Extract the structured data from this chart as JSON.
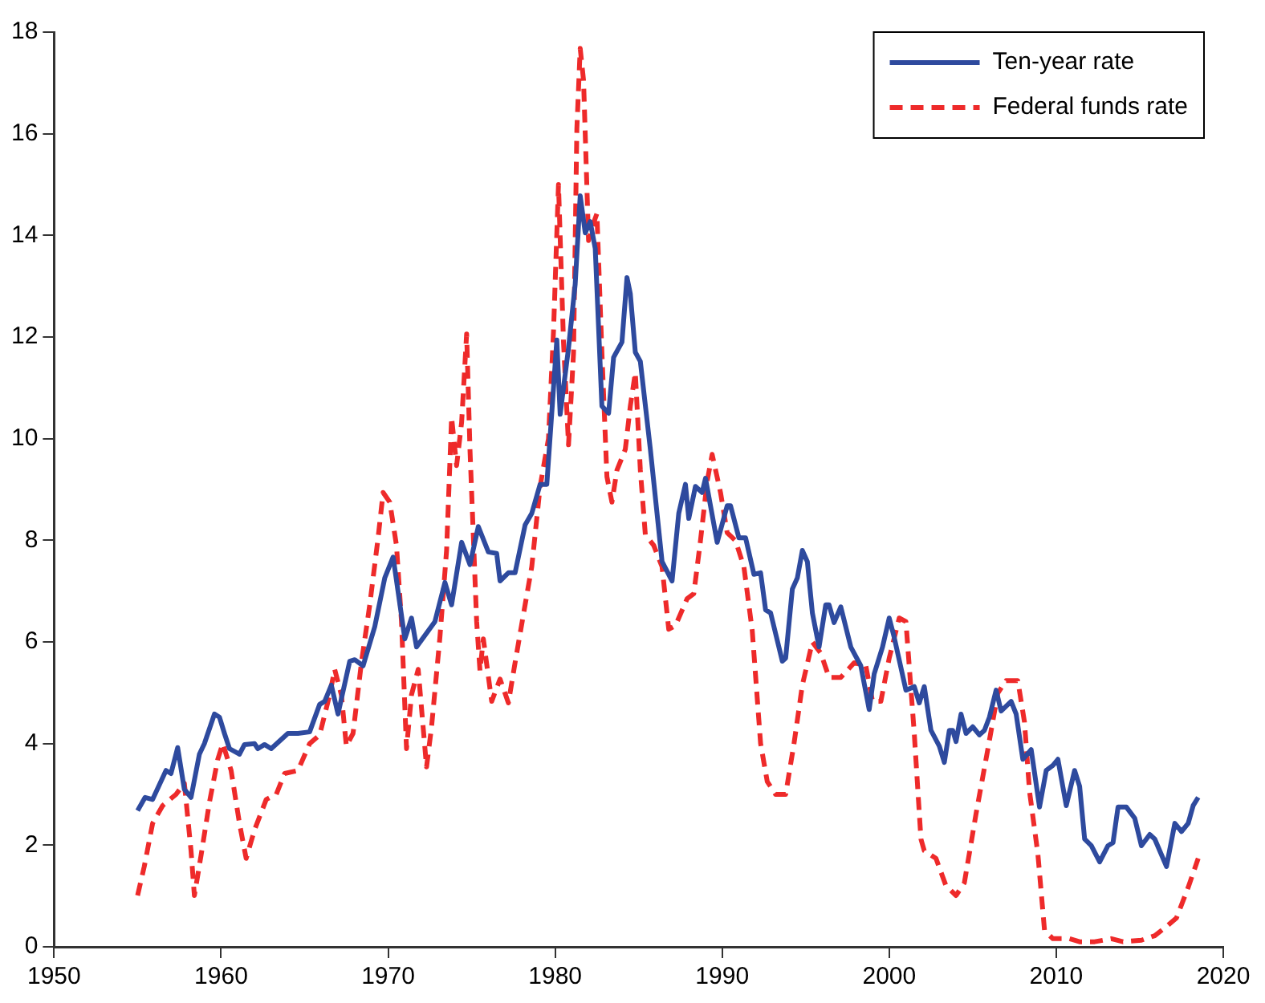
{
  "chart_data": {
    "type": "line",
    "xlim": [
      1950,
      2020
    ],
    "xticks": [
      1950,
      1960,
      1970,
      1980,
      1990,
      2000,
      2010,
      2020
    ],
    "ylim": [
      0,
      18
    ],
    "yticks": [
      0,
      2,
      4,
      6,
      8,
      10,
      12,
      14,
      16,
      18
    ],
    "grid": false,
    "legend": "top right",
    "marker": "none",
    "series": [
      {
        "name": "Ten-year rate",
        "color": "#2e4a9e",
        "line_style": "solid",
        "x": [
          1955.0,
          1955.45,
          1955.9,
          1956.7,
          1957.0,
          1957.4,
          1957.8,
          1958.2,
          1958.7,
          1959.0,
          1959.6,
          1959.9,
          1960.2,
          1960.5,
          1961.1,
          1961.4,
          1962.0,
          1962.2,
          1962.6,
          1963.0,
          1964.0,
          1964.6,
          1965.3,
          1965.9,
          1966.2,
          1966.6,
          1967.0,
          1967.7,
          1968.0,
          1968.5,
          1969.2,
          1969.8,
          1970.3,
          1971.0,
          1971.4,
          1971.7,
          1972.8,
          1973.4,
          1973.8,
          1974.4,
          1974.9,
          1975.4,
          1976.0,
          1976.5,
          1976.7,
          1977.2,
          1977.6,
          1978.2,
          1978.6,
          1979.1,
          1979.5,
          1980.1,
          1980.3,
          1980.8,
          1981.2,
          1981.5,
          1981.8,
          1982.1,
          1982.4,
          1982.8,
          1983.2,
          1983.5,
          1984.0,
          1984.3,
          1984.5,
          1984.8,
          1985.1,
          1985.7,
          1986.4,
          1987.0,
          1987.4,
          1987.8,
          1988.0,
          1988.4,
          1988.8,
          1989.0,
          1989.3,
          1989.7,
          1990.3,
          1990.5,
          1991.0,
          1991.4,
          1991.9,
          1992.3,
          1992.6,
          1992.9,
          1993.6,
          1993.8,
          1994.2,
          1994.5,
          1994.8,
          1995.1,
          1995.4,
          1995.8,
          1996.2,
          1996.4,
          1996.7,
          1997.1,
          1997.7,
          1998.3,
          1998.8,
          1999.1,
          1999.6,
          2000.0,
          2000.3,
          2001.0,
          2001.5,
          2001.8,
          2002.1,
          2002.5,
          2003.0,
          2003.3,
          2003.6,
          2003.8,
          2004.0,
          2004.3,
          2004.6,
          2005.0,
          2005.4,
          2005.7,
          2006.0,
          2006.4,
          2006.7,
          2007.3,
          2007.6,
          2008.0,
          2008.5,
          2009.0,
          2009.4,
          2009.8,
          2010.1,
          2010.6,
          2011.1,
          2011.4,
          2011.7,
          2012.1,
          2012.6,
          2013.1,
          2013.4,
          2013.7,
          2014.2,
          2014.7,
          2015.1,
          2015.6,
          2015.9,
          2016.6,
          2017.1,
          2017.5,
          2017.9,
          2018.2,
          2018.5
        ],
        "values": [
          2.68,
          2.94,
          2.9,
          3.47,
          3.41,
          3.92,
          3.1,
          2.94,
          3.79,
          4.0,
          4.58,
          4.52,
          4.2,
          3.9,
          3.79,
          3.98,
          4.0,
          3.9,
          3.98,
          3.9,
          4.2,
          4.2,
          4.23,
          4.77,
          4.83,
          5.15,
          4.58,
          5.62,
          5.65,
          5.53,
          6.3,
          7.26,
          7.67,
          6.06,
          6.47,
          5.9,
          6.4,
          7.17,
          6.73,
          7.96,
          7.52,
          8.27,
          7.77,
          7.74,
          7.2,
          7.36,
          7.36,
          8.3,
          8.53,
          9.1,
          9.1,
          11.94,
          10.48,
          11.78,
          13.04,
          14.78,
          14.05,
          14.27,
          13.74,
          10.64,
          10.5,
          11.6,
          11.9,
          13.17,
          12.85,
          11.7,
          11.52,
          9.79,
          7.58,
          7.2,
          8.53,
          9.1,
          8.43,
          9.06,
          8.94,
          9.22,
          8.68,
          7.96,
          8.68,
          8.68,
          8.05,
          8.05,
          7.33,
          7.36,
          6.63,
          6.57,
          5.62,
          5.68,
          7.04,
          7.26,
          7.8,
          7.58,
          6.57,
          5.9,
          6.73,
          6.73,
          6.38,
          6.69,
          5.9,
          5.53,
          4.67,
          5.37,
          5.9,
          6.47,
          6.09,
          5.05,
          5.12,
          4.8,
          5.12,
          4.26,
          3.95,
          3.63,
          4.26,
          4.26,
          4.04,
          4.58,
          4.2,
          4.33,
          4.17,
          4.26,
          4.52,
          5.05,
          4.64,
          4.83,
          4.58,
          3.69,
          3.88,
          2.75,
          3.47,
          3.57,
          3.69,
          2.78,
          3.47,
          3.16,
          2.12,
          1.99,
          1.67,
          1.99,
          2.05,
          2.75,
          2.75,
          2.53,
          1.99,
          2.21,
          2.12,
          1.58,
          2.43,
          2.27,
          2.43,
          2.78,
          2.94
        ]
      },
      {
        "name": "Federal funds rate",
        "color": "#ee2a2a",
        "line_style": "dashed",
        "x": [
          1955.0,
          1955.4,
          1955.9,
          1956.5,
          1957.3,
          1957.8,
          1958.2,
          1958.4,
          1958.8,
          1959.3,
          1959.8,
          1960.1,
          1960.6,
          1961.1,
          1961.5,
          1962.0,
          1962.7,
          1963.3,
          1963.8,
          1964.6,
          1965.3,
          1965.9,
          1966.5,
          1966.8,
          1967.2,
          1967.5,
          1967.9,
          1968.4,
          1968.9,
          1969.4,
          1969.7,
          1970.1,
          1970.5,
          1970.8,
          1971.1,
          1971.4,
          1971.8,
          1972.3,
          1972.6,
          1973.1,
          1973.5,
          1973.8,
          1974.1,
          1974.4,
          1974.7,
          1974.9,
          1975.3,
          1975.5,
          1975.7,
          1976.2,
          1976.7,
          1977.2,
          1977.6,
          1978.1,
          1978.6,
          1979.1,
          1979.6,
          1979.9,
          1980.2,
          1980.5,
          1980.8,
          1981.1,
          1981.3,
          1981.5,
          1981.7,
          1982.0,
          1982.2,
          1982.5,
          1982.8,
          1983.1,
          1983.4,
          1983.7,
          1984.2,
          1984.5,
          1984.8,
          1985.1,
          1985.4,
          1985.9,
          1986.4,
          1986.8,
          1987.2,
          1987.9,
          1988.3,
          1988.7,
          1989.1,
          1989.4,
          1989.9,
          1990.3,
          1990.8,
          1991.3,
          1991.8,
          1992.3,
          1992.7,
          1993.2,
          1993.8,
          1994.3,
          1994.8,
          1995.4,
          1995.9,
          1996.4,
          1997.1,
          1997.9,
          1998.6,
          1999.0,
          1999.5,
          2000.0,
          2000.6,
          2001.0,
          2001.5,
          2001.9,
          2002.1,
          2002.8,
          2003.4,
          2004.0,
          2004.5,
          2005.2,
          2005.9,
          2006.5,
          2007.0,
          2007.7,
          2008.1,
          2008.4,
          2008.9,
          2009.3,
          2009.8,
          2010.8,
          2011.4,
          2012.3,
          2013.3,
          2014.0,
          2015.1,
          2015.9,
          2016.6,
          2017.2,
          2017.9,
          2018.5
        ],
        "values": [
          1.01,
          1.58,
          2.43,
          2.78,
          3.0,
          3.22,
          1.89,
          1.01,
          1.8,
          2.84,
          3.69,
          4.0,
          3.47,
          2.43,
          1.74,
          2.3,
          2.9,
          3.0,
          3.41,
          3.47,
          4.0,
          4.17,
          4.96,
          5.46,
          4.96,
          3.95,
          4.2,
          5.59,
          6.73,
          8.05,
          8.94,
          8.75,
          7.9,
          6.4,
          3.9,
          4.96,
          5.46,
          3.54,
          4.33,
          6.09,
          7.8,
          10.42,
          9.47,
          10.32,
          12.06,
          9.79,
          6.4,
          5.43,
          6.06,
          4.83,
          5.27,
          4.8,
          5.59,
          6.54,
          7.48,
          9.06,
          10.0,
          12.1,
          15.0,
          11.9,
          9.88,
          11.68,
          16.1,
          17.68,
          17.05,
          13.9,
          14.15,
          14.43,
          11.68,
          9.25,
          8.75,
          9.38,
          9.79,
          10.64,
          11.3,
          9.38,
          8.11,
          7.9,
          7.48,
          6.25,
          6.32,
          6.85,
          6.95,
          7.99,
          9.16,
          9.69,
          8.94,
          8.15,
          7.99,
          7.48,
          6.22,
          4.0,
          3.25,
          3.0,
          3.0,
          4.0,
          5.15,
          6.0,
          5.78,
          5.3,
          5.3,
          5.59,
          5.53,
          4.83,
          4.83,
          5.68,
          6.47,
          6.4,
          4.2,
          2.12,
          1.89,
          1.74,
          1.2,
          1.01,
          1.26,
          2.62,
          3.88,
          4.99,
          5.24,
          5.24,
          4.42,
          3.06,
          1.83,
          0.32,
          0.16,
          0.16,
          0.1,
          0.1,
          0.16,
          0.1,
          0.13,
          0.22,
          0.4,
          0.57,
          1.17,
          1.74
        ]
      }
    ]
  }
}
